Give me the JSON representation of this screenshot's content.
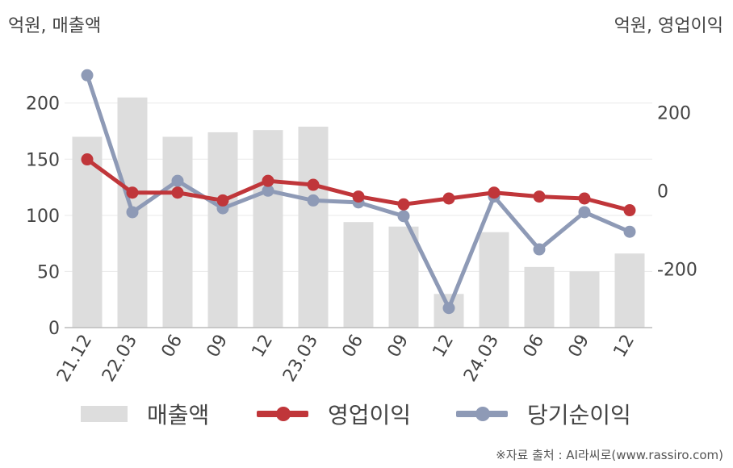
{
  "units": {
    "left": "억원, 매출액",
    "right": "억원, 영업이익"
  },
  "source": "※자료 출처 : AI라씨로(www.rassiro.com)",
  "chart_data": {
    "type": "bar+line",
    "categories": [
      "21.12",
      "22.03",
      "06",
      "09",
      "12",
      "23.03",
      "06",
      "09",
      "12",
      "24.03",
      "06",
      "09",
      "12"
    ],
    "left_axis": {
      "ticks": [
        0,
        50,
        100,
        150,
        200
      ],
      "ylim": [
        0,
        230
      ]
    },
    "right_axis": {
      "ticks": [
        -200,
        0,
        200
      ],
      "ylim": [
        -350,
        310
      ]
    },
    "grid": true,
    "legend_position": "bottom",
    "series": [
      {
        "name": "매출액",
        "type": "bar",
        "axis": "left",
        "color": "#dddddd",
        "values": [
          170,
          205,
          170,
          174,
          176,
          179,
          94,
          90,
          30,
          85,
          54,
          50,
          66
        ]
      },
      {
        "name": "영업이익",
        "type": "line",
        "axis": "right",
        "color": "#c0363a",
        "values": [
          80,
          -5,
          -5,
          -25,
          25,
          15,
          -15,
          -35,
          -20,
          -5,
          -15,
          -20,
          -50
        ]
      },
      {
        "name": "당기순이익",
        "type": "line",
        "axis": "right",
        "color": "#8e9ab6",
        "values": [
          295,
          -55,
          25,
          -45,
          0,
          -25,
          -30,
          -65,
          -300,
          -15,
          -150,
          -55,
          -105
        ]
      }
    ]
  }
}
